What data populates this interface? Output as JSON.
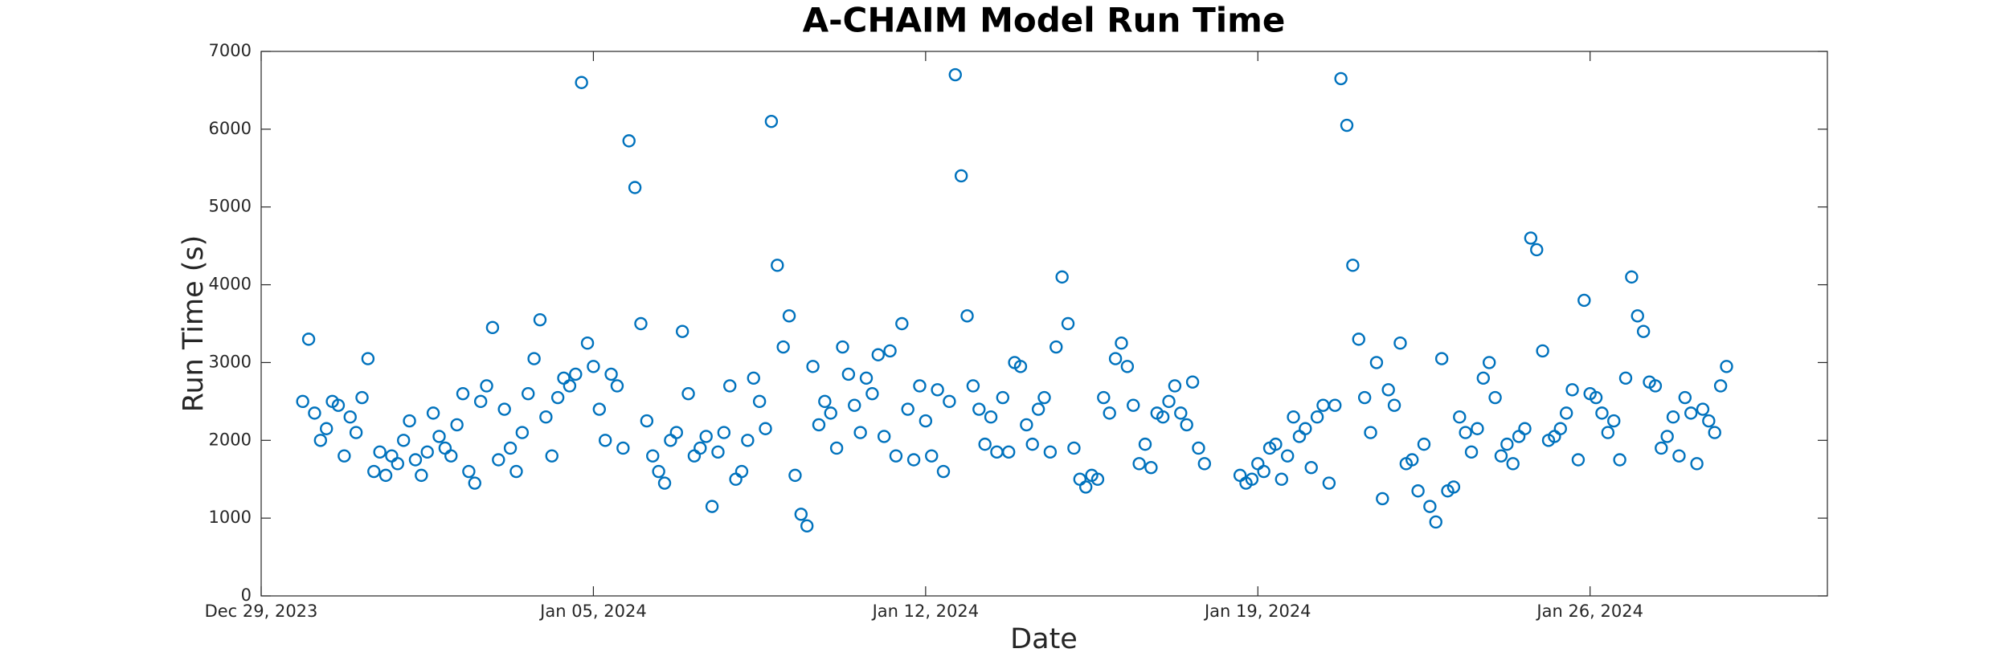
{
  "chart_data": {
    "type": "scatter",
    "title": "A-CHAIM Model Run Time",
    "xlabel": "Date",
    "ylabel": "Run Time (s)",
    "color": "#0072bd",
    "marker": "open-circle",
    "box": true,
    "xlim": [
      "2023-12-29",
      "2024-01-31"
    ],
    "xticks": [
      {
        "value": "2023-12-29",
        "label": "Dec 29, 2023"
      },
      {
        "value": "2024-01-05",
        "label": "Jan 05, 2024"
      },
      {
        "value": "2024-01-12",
        "label": "Jan 12, 2024"
      },
      {
        "value": "2024-01-19",
        "label": "Jan 19, 2024"
      },
      {
        "value": "2024-01-26",
        "label": "Jan 26, 2024"
      }
    ],
    "ylim": [
      0,
      7000
    ],
    "yticks": [
      0,
      1000,
      2000,
      3000,
      4000,
      5000,
      6000,
      7000
    ],
    "x": [
      "2023-12-29T21:00",
      "2023-12-30T00:00",
      "2023-12-30T03:00",
      "2023-12-30T06:00",
      "2023-12-30T09:00",
      "2023-12-30T12:00",
      "2023-12-30T15:00",
      "2023-12-30T18:00",
      "2023-12-30T21:00",
      "2023-12-31T00:00",
      "2023-12-31T03:00",
      "2023-12-31T06:00",
      "2023-12-31T09:00",
      "2023-12-31T12:00",
      "2023-12-31T15:00",
      "2023-12-31T18:00",
      "2023-12-31T21:00",
      "2024-01-01T00:00",
      "2024-01-01T03:00",
      "2024-01-01T06:00",
      "2024-01-01T09:00",
      "2024-01-01T12:00",
      "2024-01-01T15:00",
      "2024-01-01T18:00",
      "2024-01-01T21:00",
      "2024-01-02T00:00",
      "2024-01-02T03:00",
      "2024-01-02T06:00",
      "2024-01-02T09:00",
      "2024-01-02T12:00",
      "2024-01-02T15:00",
      "2024-01-02T18:00",
      "2024-01-02T21:00",
      "2024-01-03T00:00",
      "2024-01-03T03:00",
      "2024-01-03T06:00",
      "2024-01-03T09:00",
      "2024-01-03T12:00",
      "2024-01-03T15:00",
      "2024-01-03T18:00",
      "2024-01-03T21:00",
      "2024-01-04T00:00",
      "2024-01-04T03:00",
      "2024-01-04T06:00",
      "2024-01-04T09:00",
      "2024-01-04T12:00",
      "2024-01-04T15:00",
      "2024-01-04T18:00",
      "2024-01-04T21:00",
      "2024-01-05T00:00",
      "2024-01-05T03:00",
      "2024-01-05T06:00",
      "2024-01-05T09:00",
      "2024-01-05T12:00",
      "2024-01-05T15:00",
      "2024-01-05T18:00",
      "2024-01-05T21:00",
      "2024-01-06T00:00",
      "2024-01-06T03:00",
      "2024-01-06T06:00",
      "2024-01-06T09:00",
      "2024-01-06T12:00",
      "2024-01-06T15:00",
      "2024-01-06T18:00",
      "2024-01-06T21:00",
      "2024-01-07T00:00",
      "2024-01-07T03:00",
      "2024-01-07T06:00",
      "2024-01-07T09:00",
      "2024-01-07T12:00",
      "2024-01-07T15:00",
      "2024-01-07T18:00",
      "2024-01-07T21:00",
      "2024-01-08T00:00",
      "2024-01-08T03:00",
      "2024-01-08T06:00",
      "2024-01-08T09:00",
      "2024-01-08T12:00",
      "2024-01-08T15:00",
      "2024-01-08T18:00",
      "2024-01-08T21:00",
      "2024-01-09T00:00",
      "2024-01-09T03:00",
      "2024-01-09T06:00",
      "2024-01-09T09:00",
      "2024-01-09T12:00",
      "2024-01-09T15:00",
      "2024-01-09T18:00",
      "2024-01-09T21:00",
      "2024-01-10T00:00",
      "2024-01-10T03:00",
      "2024-01-10T06:00",
      "2024-01-10T09:00",
      "2024-01-10T12:00",
      "2024-01-10T15:00",
      "2024-01-10T18:00",
      "2024-01-10T21:00",
      "2024-01-11T00:00",
      "2024-01-11T03:00",
      "2024-01-11T06:00",
      "2024-01-11T09:00",
      "2024-01-11T12:00",
      "2024-01-11T15:00",
      "2024-01-11T18:00",
      "2024-01-11T21:00",
      "2024-01-12T00:00",
      "2024-01-12T03:00",
      "2024-01-12T06:00",
      "2024-01-12T09:00",
      "2024-01-12T12:00",
      "2024-01-12T15:00",
      "2024-01-12T18:00",
      "2024-01-12T21:00",
      "2024-01-13T00:00",
      "2024-01-13T03:00",
      "2024-01-13T06:00",
      "2024-01-13T09:00",
      "2024-01-13T12:00",
      "2024-01-13T15:00",
      "2024-01-13T18:00",
      "2024-01-13T21:00",
      "2024-01-14T00:00",
      "2024-01-14T03:00",
      "2024-01-14T06:00",
      "2024-01-14T09:00",
      "2024-01-14T12:00",
      "2024-01-14T15:00",
      "2024-01-14T18:00",
      "2024-01-14T21:00",
      "2024-01-15T00:00",
      "2024-01-15T03:00",
      "2024-01-15T06:00",
      "2024-01-15T09:00",
      "2024-01-15T12:00",
      "2024-01-15T15:00",
      "2024-01-15T18:00",
      "2024-01-15T21:00",
      "2024-01-16T00:00",
      "2024-01-16T03:00",
      "2024-01-16T06:00",
      "2024-01-16T09:00",
      "2024-01-16T12:00",
      "2024-01-16T15:00",
      "2024-01-16T18:00",
      "2024-01-16T21:00",
      "2024-01-17T00:00",
      "2024-01-17T03:00",
      "2024-01-17T06:00",
      "2024-01-17T09:00",
      "2024-01-17T12:00",
      "2024-01-17T15:00",
      "2024-01-17T18:00",
      "2024-01-17T21:00",
      "2024-01-18T15:00",
      "2024-01-18T18:00",
      "2024-01-18T21:00",
      "2024-01-19T00:00",
      "2024-01-19T03:00",
      "2024-01-19T06:00",
      "2024-01-19T09:00",
      "2024-01-19T12:00",
      "2024-01-19T15:00",
      "2024-01-19T18:00",
      "2024-01-19T21:00",
      "2024-01-20T00:00",
      "2024-01-20T03:00",
      "2024-01-20T06:00",
      "2024-01-20T09:00",
      "2024-01-20T12:00",
      "2024-01-20T15:00",
      "2024-01-20T18:00",
      "2024-01-20T21:00",
      "2024-01-21T00:00",
      "2024-01-21T03:00",
      "2024-01-21T06:00",
      "2024-01-21T09:00",
      "2024-01-21T12:00",
      "2024-01-21T15:00",
      "2024-01-21T18:00",
      "2024-01-21T21:00",
      "2024-01-22T00:00",
      "2024-01-22T03:00",
      "2024-01-22T06:00",
      "2024-01-22T09:00",
      "2024-01-22T12:00",
      "2024-01-22T15:00",
      "2024-01-22T18:00",
      "2024-01-22T21:00",
      "2024-01-23T00:00",
      "2024-01-23T03:00",
      "2024-01-23T06:00",
      "2024-01-23T09:00",
      "2024-01-23T12:00",
      "2024-01-23T15:00",
      "2024-01-23T18:00",
      "2024-01-23T21:00",
      "2024-01-24T00:00",
      "2024-01-24T03:00",
      "2024-01-24T06:00",
      "2024-01-24T09:00",
      "2024-01-24T12:00",
      "2024-01-24T15:00",
      "2024-01-24T18:00",
      "2024-01-24T21:00",
      "2024-01-25T00:00",
      "2024-01-25T03:00",
      "2024-01-25T06:00",
      "2024-01-25T09:00",
      "2024-01-25T12:00",
      "2024-01-25T15:00",
      "2024-01-25T18:00",
      "2024-01-25T21:00",
      "2024-01-26T00:00",
      "2024-01-26T03:00",
      "2024-01-26T06:00",
      "2024-01-26T09:00",
      "2024-01-26T12:00",
      "2024-01-26T15:00",
      "2024-01-26T18:00",
      "2024-01-26T21:00",
      "2024-01-27T00:00",
      "2024-01-27T03:00",
      "2024-01-27T06:00",
      "2024-01-27T09:00",
      "2024-01-27T12:00",
      "2024-01-27T15:00",
      "2024-01-27T18:00",
      "2024-01-27T21:00",
      "2024-01-28T00:00",
      "2024-01-28T03:00",
      "2024-01-28T06:00",
      "2024-01-28T09:00",
      "2024-01-28T12:00",
      "2024-01-28T15:00",
      "2024-01-28T18:00",
      "2024-01-28T21:00"
    ],
    "values": [
      2500,
      3300,
      2350,
      2000,
      2150,
      2500,
      2450,
      1800,
      2300,
      2100,
      2550,
      3050,
      1600,
      1850,
      1550,
      1800,
      1700,
      2000,
      2250,
      1750,
      1550,
      1850,
      2350,
      2050,
      1900,
      1800,
      2200,
      2600,
      1600,
      1450,
      2500,
      2700,
      3450,
      1750,
      2400,
      1900,
      1600,
      2100,
      2600,
      3050,
      3550,
      2300,
      1800,
      2550,
      2800,
      2700,
      2850,
      6600,
      3250,
      2950,
      2400,
      2000,
      2850,
      2700,
      1900,
      5850,
      5250,
      3500,
      2250,
      1800,
      1600,
      1450,
      2000,
      2100,
      3400,
      2600,
      1800,
      1900,
      2050,
      1150,
      1850,
      2100,
      2700,
      1500,
      1600,
      2000,
      2800,
      2500,
      2150,
      6100,
      4250,
      3200,
      3600,
      1550,
      1050,
      900,
      2950,
      2200,
      2500,
      2350,
      1900,
      3200,
      2850,
      2450,
      2100,
      2800,
      2600,
      3100,
      2050,
      3150,
      1800,
      3500,
      2400,
      1750,
      2700,
      2250,
      1800,
      2650,
      1600,
      2500,
      6700,
      5400,
      3600,
      2700,
      2400,
      1950,
      2300,
      1850,
      2550,
      1850,
      3000,
      2950,
      2200,
      1950,
      2400,
      2550,
      1850,
      3200,
      4100,
      3500,
      1900,
      1500,
      1400,
      1550,
      1500,
      2550,
      2350,
      3050,
      3250,
      2950,
      2450,
      1700,
      1950,
      1650,
      2350,
      2300,
      2500,
      2700,
      2350,
      2200,
      2750,
      1900,
      1700,
      1550,
      1450,
      1500,
      1700,
      1600,
      1900,
      1950,
      1500,
      1800,
      2300,
      2050,
      2150,
      1650,
      2300,
      2450,
      1450,
      2450,
      6650,
      6050,
      4250,
      3300,
      2550,
      2100,
      3000,
      1250,
      2650,
      2450,
      3250,
      1700,
      1750,
      1350,
      1950,
      1150,
      950,
      3050,
      1350,
      1400,
      2300,
      2100,
      1850,
      2150,
      2800,
      3000,
      2550,
      1800,
      1950,
      1700,
      2050,
      2150,
      4600,
      4450,
      3150,
      2000,
      2050,
      2150,
      2350,
      2650,
      1750,
      3800,
      2600,
      2550,
      2350,
      2100,
      2250,
      1750,
      2800,
      4100,
      3600,
      3400,
      2750,
      2700,
      1900,
      2050,
      2300,
      1800,
      2550,
      2350,
      1700,
      2400,
      2250,
      2100,
      2700,
      2950
    ]
  }
}
